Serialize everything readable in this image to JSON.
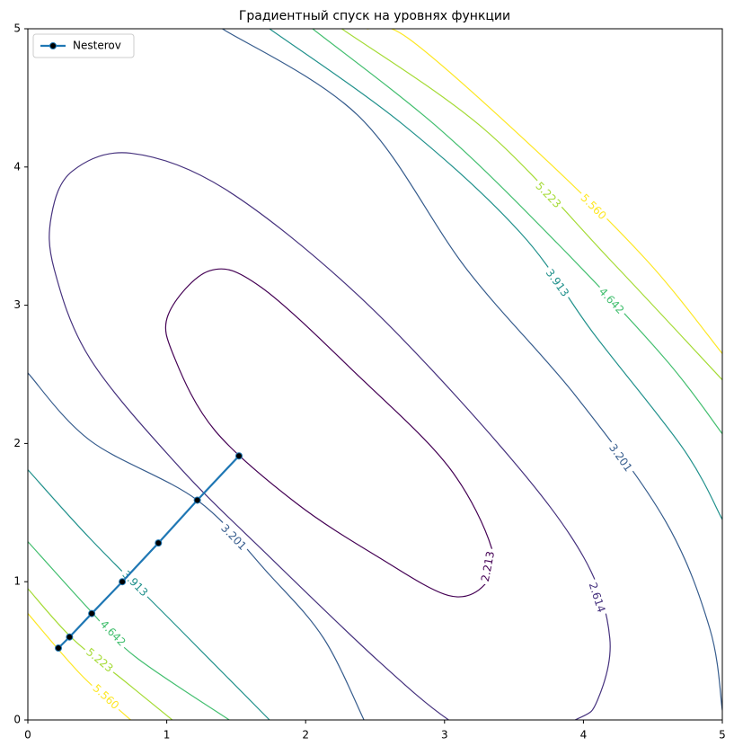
{
  "chart_data": {
    "type": "contour",
    "title": "Градиентный спуск на уровнях функции",
    "xlim": [
      0,
      5
    ],
    "ylim": [
      0,
      5
    ],
    "xticks": [
      0,
      1,
      2,
      3,
      4,
      5
    ],
    "yticks": [
      0,
      1,
      2,
      3,
      4,
      5
    ],
    "legend": "upper left",
    "contours": [
      {
        "level": 2.213,
        "label": "2.213",
        "color": "#440154",
        "closed": true,
        "pieces": [
          {
            "x": [
              1.01,
              1.31,
              1.68,
              2.39,
              3.03,
              3.34,
              3.29,
              3.03,
              2.52,
              1.93,
              1.35,
              1.06
            ],
            "y": [
              2.93,
              3.25,
              3.13,
              2.48,
              1.83,
              1.24,
              0.98,
              0.9,
              1.18,
              1.57,
              2.09,
              2.61
            ]
          }
        ]
      },
      {
        "level": 2.614,
        "label": "2.614",
        "color": "#46327e",
        "closed": true,
        "pieces": [
          {
            "x": [
              0.45,
              0.19,
              0.17,
              0.32,
              0.74,
              1.42,
              2.39,
              3.42,
              4.0,
              4.19,
              4.1,
              3.94,
              3.42,
              3.03,
              2.52,
              1.74,
              1.09
            ],
            "y": [
              2.61,
              3.26,
              3.65,
              3.97,
              4.1,
              3.84,
              3.06,
              1.96,
              1.18,
              0.59,
              0.14,
              0,
              -0.19,
              0,
              0.43,
              1.18,
              1.83
            ]
          }
        ]
      },
      {
        "level": 3.201,
        "label": "3.201",
        "color": "#365c8d",
        "pieces": [
          {
            "x": [
              0,
              0.45,
              1.22,
              1.74,
              2.13,
              2.42
            ],
            "y": [
              2.51,
              2.02,
              1.59,
              1.05,
              0.59,
              0
            ]
          },
          {
            "x": [
              1.4,
              2.39,
              3.16,
              3.94,
              4.59,
              4.91,
              5
            ],
            "y": [
              5,
              4.36,
              3.26,
              2.35,
              1.44,
              0.66,
              0.07
            ]
          }
        ]
      },
      {
        "level": 3.913,
        "label": "3.913",
        "color": "#21918c",
        "pieces": [
          {
            "x": [
              0,
              0.45,
              1.09,
              1.74
            ],
            "y": [
              1.81,
              1.31,
              0.66,
              0
            ]
          },
          {
            "x": [
              1.74,
              2.71,
              3.55,
              4.07,
              4.72,
              5
            ],
            "y": [
              5,
              4.3,
              3.52,
              2.8,
              1.96,
              1.45
            ]
          }
        ]
      },
      {
        "level": 4.642,
        "label": "4.642",
        "color": "#44bf70",
        "pieces": [
          {
            "x": [
              0,
              0.45,
              0.77,
              1.45
            ],
            "y": [
              1.29,
              0.79,
              0.46,
              0
            ]
          },
          {
            "x": [
              2.05,
              2.97,
              3.81,
              4.59,
              5
            ],
            "y": [
              5,
              4.27,
              3.45,
              2.61,
              2.07
            ]
          }
        ]
      },
      {
        "level": 5.223,
        "label": "5.223",
        "color": "#a5db36",
        "pieces": [
          {
            "x": [
              0,
              0.32,
              0.71,
              1.04
            ],
            "y": [
              0.95,
              0.59,
              0.27,
              0
            ]
          },
          {
            "x": [
              2.26,
              3.29,
              4.2,
              5
            ],
            "y": [
              5,
              4.27,
              3.32,
              2.46
            ]
          }
        ]
      },
      {
        "level": 5.56,
        "label": "5.560",
        "color": "#fde725",
        "pieces": [
          {
            "x": [
              0,
              0.38,
              0.74
            ],
            "y": [
              0.77,
              0.33,
              0
            ]
          },
          {
            "x": [
              2.44,
              2.74,
              3.68,
              4.46,
              5
            ],
            "y": [
              5,
              4.93,
              4.1,
              3.32,
              2.65
            ]
          }
        ]
      }
    ],
    "series": [
      {
        "name": "Nesterov",
        "color": "#1f77b4",
        "x": [
          1.52,
          1.22,
          0.94,
          0.68,
          0.46,
          0.3,
          0.22
        ],
        "values": [
          1.91,
          1.59,
          1.28,
          1.0,
          0.77,
          0.6,
          0.52
        ]
      }
    ]
  }
}
